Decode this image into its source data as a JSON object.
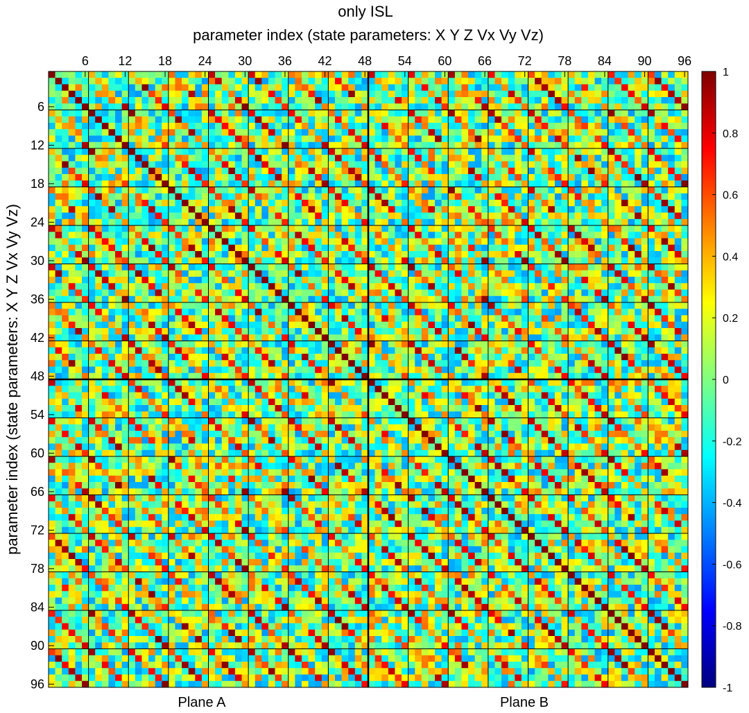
{
  "chart_data": {
    "type": "heatmap",
    "title": "only ISL",
    "xlabel": "parameter index (state parameters: X Y Z Vx Vy Vz)",
    "ylabel": "parameter index (state parameters: X Y Z Vx Vy Vz)",
    "x_axis_position": "top",
    "size": 96,
    "block_size": 6,
    "xlim": [
      0.5,
      96.5
    ],
    "ylim": [
      0.5,
      96.5
    ],
    "x_ticks": [
      6,
      12,
      18,
      24,
      30,
      36,
      42,
      48,
      54,
      60,
      66,
      72,
      78,
      84,
      90,
      96
    ],
    "y_ticks": [
      6,
      12,
      18,
      24,
      30,
      36,
      42,
      48,
      54,
      60,
      66,
      72,
      78,
      84,
      90,
      96
    ],
    "colorbar": {
      "colormap": "jet",
      "clim": [
        -1,
        1
      ],
      "ticks": [
        1,
        0.8,
        0.6,
        0.4,
        0.2,
        0,
        -0.2,
        -0.4,
        -0.6,
        -0.8,
        -1
      ],
      "tick_labels": [
        "1",
        "0.8",
        "0.6",
        "0.4",
        "0.2",
        "0",
        "-0.2",
        "-0.4",
        "-0.6",
        "-0.8",
        "-1"
      ]
    },
    "diagonal_value": 1,
    "same_component_offblock_value_range": [
      0.3,
      1.0
    ],
    "other_value_range": [
      -0.45,
      0.35
    ],
    "group_labels": [
      "Plane A",
      "Plane B"
    ],
    "group_boundary_index": 48,
    "block_gridlines": true
  }
}
